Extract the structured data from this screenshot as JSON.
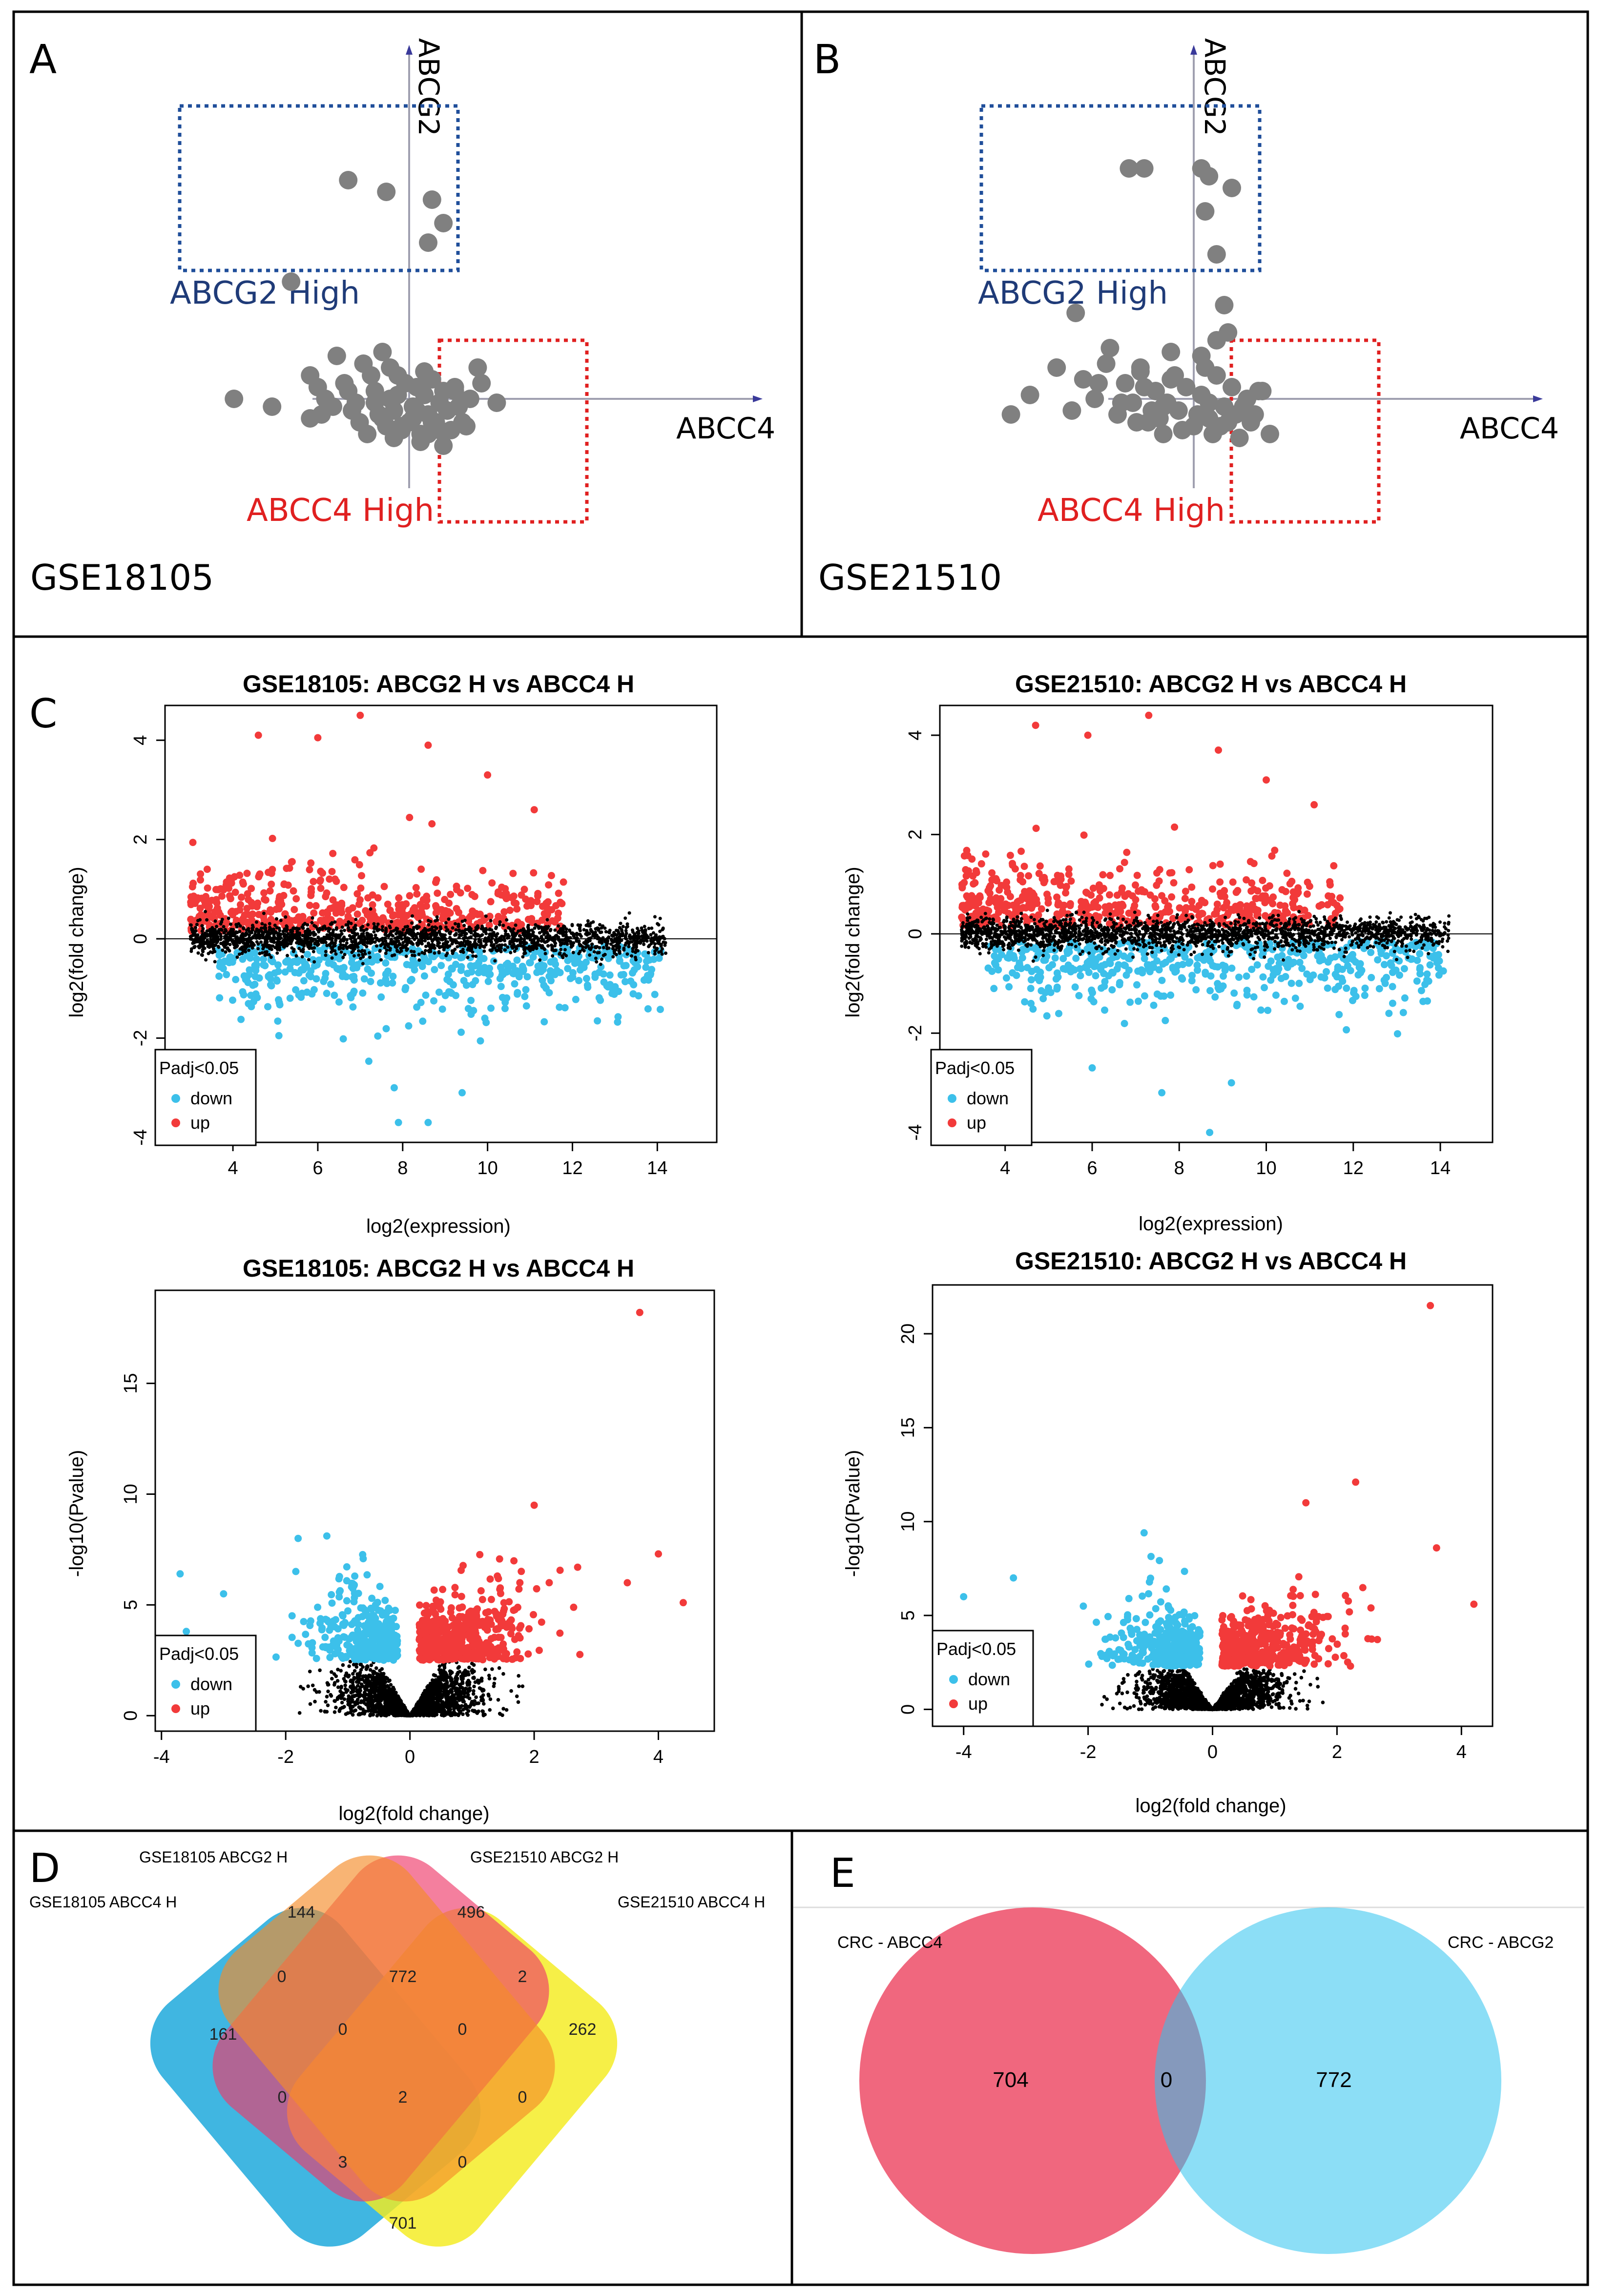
{
  "panels": {
    "A": {
      "letter": "A",
      "dataset": "GSE18105",
      "x_label": "ABCC4",
      "y_label": "ABCG2",
      "box_g2": "ABCG2 High",
      "box_c4": "ABCC4 High"
    },
    "B": {
      "letter": "B",
      "dataset": "GSE21510",
      "x_label": "ABCC4",
      "y_label": "ABCG2",
      "box_g2": "ABCG2 High",
      "box_c4": "ABCC4 High"
    },
    "C": {
      "letter": "C"
    },
    "D": {
      "letter": "D"
    },
    "E": {
      "letter": "E"
    }
  },
  "colors": {
    "up": "#f23a3a",
    "down": "#3cc0ea",
    "ns": "#000000",
    "scatter": "#808080",
    "blue_box": "#1f4e9a",
    "red_box": "#e02020",
    "venn_pink": "#f0677e",
    "venn_blue": "#2ec2ee"
  },
  "chart_data": [
    {
      "id": "A",
      "type": "scatter",
      "title": "",
      "xlabel": "ABCC4",
      "ylabel": "ABCG2",
      "x": [
        -4.6,
        -3.6,
        -2.6,
        -2.4,
        -2.2,
        -2.6,
        -2.0,
        -1.7,
        -1.4,
        -1.2,
        -1.0,
        -0.9,
        -0.7,
        -0.5,
        -0.4,
        -0.3,
        -0.2,
        -0.1,
        0.0,
        0.1,
        0.2,
        0.3,
        0.4,
        0.5,
        0.6,
        0.8,
        1.0,
        1.2,
        1.4,
        1.6,
        1.9,
        2.3,
        -1.5,
        -1.3,
        -1.1,
        -0.8,
        -0.6,
        -0.4,
        -0.2,
        0.1,
        0.3,
        0.5,
        0.7,
        0.9,
        1.1,
        -1.6,
        -0.9,
        -0.5,
        0.2,
        0.6,
        0.9,
        1.3,
        1.5,
        -0.7,
        -0.3,
        0.4,
        0.8,
        1.2,
        -3.1,
        -1.6,
        -0.6,
        0.6,
        0.9,
        0.5,
        -1.9,
        -2.3,
        1.8
      ],
      "y": [
        0.0,
        -0.2,
        -0.5,
        0.3,
        0.0,
        0.6,
        -0.2,
        0.4,
        -0.1,
        0.9,
        0.6,
        0.2,
        -0.5,
        0.8,
        -0.3,
        0.1,
        -0.7,
        0.4,
        -0.6,
        -0.2,
        0.3,
        -0.9,
        0.1,
        -0.4,
        0.5,
        -0.8,
        -0.3,
        0.2,
        -0.6,
        0.0,
        0.4,
        -0.1,
        -0.3,
        -0.6,
        -0.9,
        -0.4,
        -0.7,
        -1.0,
        -0.8,
        -0.5,
        -1.1,
        -0.9,
        -0.6,
        -1.2,
        -0.8,
        0.2,
        -0.1,
        0.0,
        -0.3,
        -0.6,
        0.2,
        -0.2,
        -0.7,
        1.2,
        0.6,
        0.7,
        -0.1,
        0.3,
        3.0,
        5.6,
        5.3,
        5.1,
        4.5,
        4.0,
        1.1,
        -0.4,
        0.8
      ]
    },
    {
      "id": "B",
      "type": "scatter",
      "title": "",
      "xlabel": "ABCC4",
      "ylabel": "ABCG2",
      "x": [
        -4.8,
        -4.3,
        -3.6,
        -3.2,
        -2.9,
        -2.6,
        -2.3,
        -2.0,
        -1.8,
        -1.6,
        -1.4,
        -1.2,
        -1.0,
        -0.8,
        -0.6,
        -0.4,
        -0.2,
        0.0,
        0.2,
        0.4,
        0.6,
        0.8,
        1.0,
        1.2,
        1.4,
        1.6,
        1.8,
        2.0,
        -1.9,
        -1.5,
        -1.1,
        -0.7,
        -0.3,
        0.1,
        0.5,
        0.9,
        1.3,
        1.7,
        -1.3,
        -0.9,
        -0.5,
        0.3,
        0.7,
        1.1,
        -0.6,
        0.2,
        0.6,
        -2.5,
        -0.8,
        0.4,
        1.5,
        -3.1,
        -1.7,
        -1.3,
        0.2,
        1.0,
        0.4,
        0.3,
        0.6,
        0.8,
        -2.2,
        -1.4,
        0.9
      ],
      "y": [
        -0.4,
        0.1,
        0.8,
        -0.3,
        0.5,
        0.0,
        0.9,
        -0.4,
        0.4,
        -0.1,
        0.7,
        -0.6,
        0.2,
        -0.9,
        0.5,
        -0.3,
        0.3,
        -0.7,
        0.1,
        -0.5,
        0.6,
        -0.2,
        0.3,
        -1.0,
        0.0,
        -0.4,
        0.2,
        -0.9,
        -0.1,
        -0.6,
        -0.3,
        -0.1,
        -0.8,
        -0.4,
        -0.9,
        -0.6,
        -0.2,
        0.2,
        0.3,
        -0.5,
        0.6,
        0.8,
        -0.7,
        -0.4,
        1.2,
        1.1,
        1.5,
        0.4,
        -0.2,
        -0.1,
        -0.6,
        2.2,
        5.9,
        5.9,
        5.9,
        5.4,
        5.7,
        4.8,
        3.7,
        2.4,
        1.3,
        0.8,
        1.7
      ]
    },
    {
      "id": "C1",
      "type": "scatter",
      "subtype": "MA plot",
      "title": "GSE18105: ABCG2 H vs ABCC4 H",
      "xlabel": "log2(expression)",
      "ylabel": "log2(fold change)",
      "xlim": [
        2.4,
        15.4
      ],
      "ylim": [
        -4.1,
        4.7
      ],
      "xticks": [
        "4",
        "6",
        "8",
        "10",
        "12",
        "14"
      ],
      "yticks": [
        "-4",
        "-2",
        "0",
        "2",
        "4"
      ],
      "legend": {
        "title": "Padj<0.05",
        "entries": [
          "down",
          "up"
        ],
        "position": "bottom-left"
      },
      "extreme_points": {
        "up": [
          [
            4.6,
            4.1
          ],
          [
            6.0,
            4.05
          ],
          [
            7.0,
            4.5
          ],
          [
            8.6,
            3.9
          ],
          [
            10.0,
            3.3
          ],
          [
            11.1,
            2.6
          ]
        ],
        "down": [
          [
            7.9,
            -3.7
          ],
          [
            8.6,
            -3.7
          ],
          [
            9.4,
            -3.1
          ],
          [
            7.8,
            -3.0
          ]
        ]
      },
      "counts": {
        "ns": 2000,
        "up": 500,
        "down": 500
      }
    },
    {
      "id": "C2",
      "type": "scatter",
      "subtype": "MA plot",
      "title": "GSE21510: ABCG2 H vs ABCC4 H",
      "xlabel": "log2(expression)",
      "ylabel": "log2(fold change)",
      "xlim": [
        2.5,
        15.2
      ],
      "ylim": [
        -4.2,
        4.6
      ],
      "xticks": [
        "4",
        "6",
        "8",
        "10",
        "12",
        "14"
      ],
      "yticks": [
        "-4",
        "-2",
        "0",
        "2",
        "4"
      ],
      "legend": {
        "title": "Padj<0.05",
        "entries": [
          "down",
          "up"
        ],
        "position": "bottom-left"
      },
      "extreme_points": {
        "up": [
          [
            4.7,
            4.2
          ],
          [
            5.9,
            4.0
          ],
          [
            7.3,
            4.4
          ],
          [
            8.9,
            3.7
          ],
          [
            10.0,
            3.1
          ],
          [
            11.1,
            2.6
          ]
        ],
        "down": [
          [
            8.7,
            -4.0
          ],
          [
            7.6,
            -3.2
          ],
          [
            9.2,
            -3.0
          ],
          [
            6.0,
            -2.7
          ]
        ]
      },
      "counts": {
        "ns": 2000,
        "up": 500,
        "down": 500
      }
    },
    {
      "id": "C3",
      "type": "scatter",
      "subtype": "volcano plot",
      "title": "GSE18105: ABCG2 H vs ABCC4 H",
      "xlabel": "log2(fold change)",
      "ylabel": "-log10(Pvalue)",
      "xlim": [
        -4.1,
        4.9
      ],
      "ylim": [
        -0.7,
        19.2
      ],
      "xticks": [
        "-4",
        "-2",
        "0",
        "2",
        "4"
      ],
      "yticks": [
        "0",
        "5",
        "10",
        "15"
      ],
      "legend": {
        "title": "Padj<0.05",
        "entries": [
          "down",
          "up"
        ],
        "position": "bottom-left"
      },
      "threshold": 2.5,
      "extreme_points": {
        "up": [
          [
            3.7,
            18.2
          ],
          [
            4.0,
            7.3
          ],
          [
            3.5,
            6.0
          ],
          [
            4.4,
            5.1
          ],
          [
            2.7,
            6.7
          ],
          [
            2.0,
            9.5
          ]
        ],
        "down": [
          [
            -3.7,
            6.4
          ],
          [
            -1.8,
            8.0
          ],
          [
            -3.0,
            5.5
          ],
          [
            -3.6,
            3.8
          ]
        ]
      },
      "counts": {
        "ns": 2000,
        "up": 450,
        "down": 350
      }
    },
    {
      "id": "C4",
      "type": "scatter",
      "subtype": "volcano plot",
      "title": "GSE21510: ABCG2 H vs ABCC4 H",
      "xlabel": "log2(fold change)",
      "ylabel": "-log10(Pvalue)",
      "xlim": [
        -4.5,
        4.5
      ],
      "ylim": [
        -0.9,
        22.6
      ],
      "xticks": [
        "-4",
        "-2",
        "0",
        "2",
        "4"
      ],
      "yticks": [
        "0",
        "5",
        "10",
        "15",
        "20"
      ],
      "legend": {
        "title": "Padj<0.05",
        "entries": [
          "down",
          "up"
        ],
        "position": "bottom-left"
      },
      "threshold": 2.3,
      "extreme_points": {
        "up": [
          [
            3.5,
            21.5
          ],
          [
            2.3,
            12.1
          ],
          [
            3.6,
            8.6
          ],
          [
            4.2,
            5.6
          ],
          [
            1.5,
            11.0
          ]
        ],
        "down": [
          [
            -4.0,
            6.0
          ],
          [
            -1.1,
            9.4
          ],
          [
            -3.2,
            7.0
          ]
        ]
      },
      "counts": {
        "ns": 2000,
        "up": 450,
        "down": 350
      }
    },
    {
      "id": "D",
      "type": "venn",
      "sets": [
        "GSE18105 ABCC4 H",
        "GSE18105 ABCG2 H",
        "GSE21510 ABCG2 H",
        "GSE21510 ABCC4 H"
      ],
      "region_values": {
        "only_GSE18105_ABCC4": "161",
        "only_GSE18105_ABCG2": "144",
        "only_GSE21510_ABCG2": "496",
        "only_GSE21510_ABCC4": "262",
        "G18C4_G18G2": "0",
        "G18G2_G21G2": "772",
        "G21G2_G21C4": "2",
        "G18C4_G18G2_G21G2": "0",
        "G18G2_G21G2_G21C4": "0",
        "G18C4_G21G2": "0",
        "all_four": "2",
        "G18G2_G21C4": "0",
        "G18C4_G21G2_G21C4": "3",
        "G18C4_G18G2_G21C4": "0",
        "G18C4_G21C4": "701"
      }
    },
    {
      "id": "E",
      "type": "venn",
      "sets": [
        "CRC - ABCC4",
        "CRC - ABCG2"
      ],
      "values": {
        "only_left": "704",
        "intersection": "0",
        "only_right": "772"
      }
    }
  ]
}
